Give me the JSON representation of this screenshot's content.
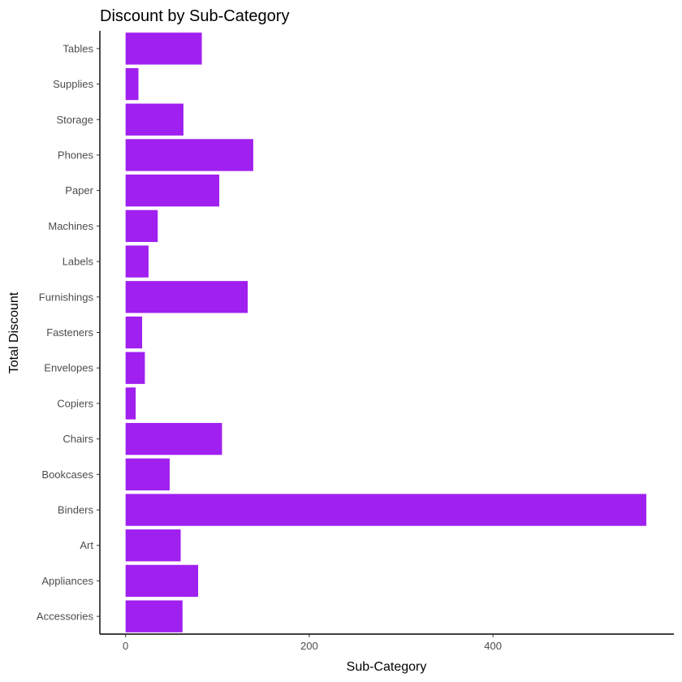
{
  "chart_data": {
    "type": "bar",
    "orientation": "horizontal",
    "title": "Discount by Sub-Category",
    "xlabel": "Sub-Category",
    "ylabel": "Total Discount",
    "categories": [
      "Accessories",
      "Appliances",
      "Art",
      "Binders",
      "Bookcases",
      "Chairs",
      "Copiers",
      "Envelopes",
      "Fasteners",
      "Furnishings",
      "Labels",
      "Machines",
      "Paper",
      "Phones",
      "Storage",
      "Supplies",
      "Tables"
    ],
    "values": [
      62,
      79,
      60,
      567,
      48,
      105,
      11,
      21,
      18,
      133,
      25,
      35,
      102,
      139,
      63,
      14,
      83
    ],
    "x_ticks": [
      0,
      200,
      400
    ],
    "xlim": [
      -28,
      597
    ],
    "grid": false,
    "legend": "none",
    "bar_color": "#a020f0"
  }
}
